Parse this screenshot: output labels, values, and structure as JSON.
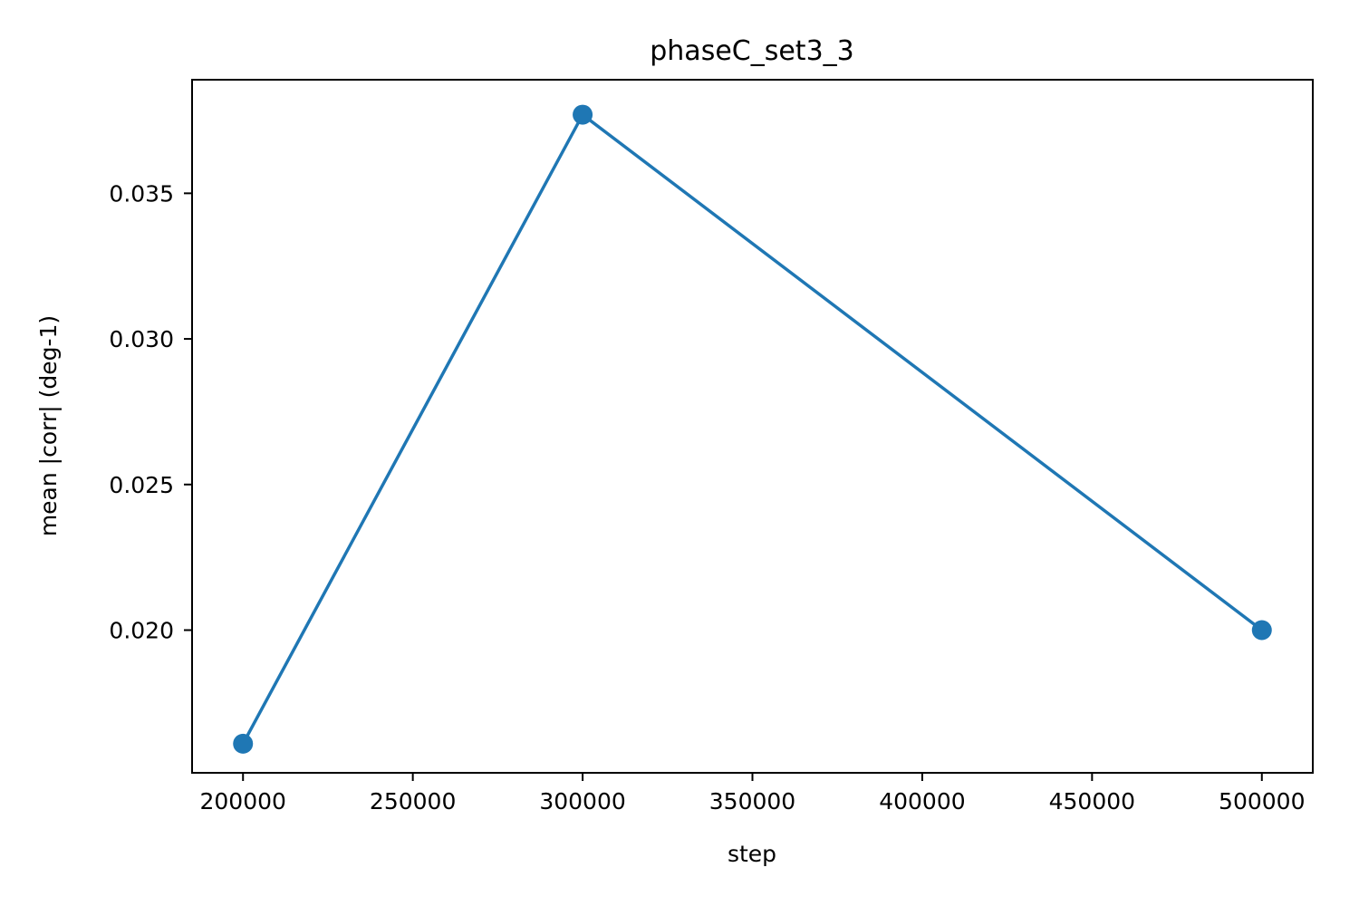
{
  "chart_data": {
    "type": "line",
    "title": "phaseC_set3_3",
    "xlabel": "step",
    "ylabel": "mean |corr| (deg-1)",
    "series": [
      {
        "x": [
          200000,
          300000,
          500000
        ],
        "y": [
          0.0161,
          0.0377,
          0.02
        ],
        "color": "#1f77b4",
        "marker": "circle"
      }
    ],
    "xlim": [
      185000,
      515000
    ],
    "ylim": [
      0.0151,
      0.0389
    ],
    "xticks": [
      200000,
      250000,
      300000,
      350000,
      400000,
      450000,
      500000
    ],
    "xtick_labels": [
      "200000",
      "250000",
      "300000",
      "350000",
      "400000",
      "450000",
      "500000"
    ],
    "yticks": [
      0.02,
      0.025,
      0.03,
      0.035
    ],
    "ytick_labels": [
      "0.020",
      "0.025",
      "0.030",
      "0.035"
    ],
    "grid": false,
    "legend": "none"
  }
}
